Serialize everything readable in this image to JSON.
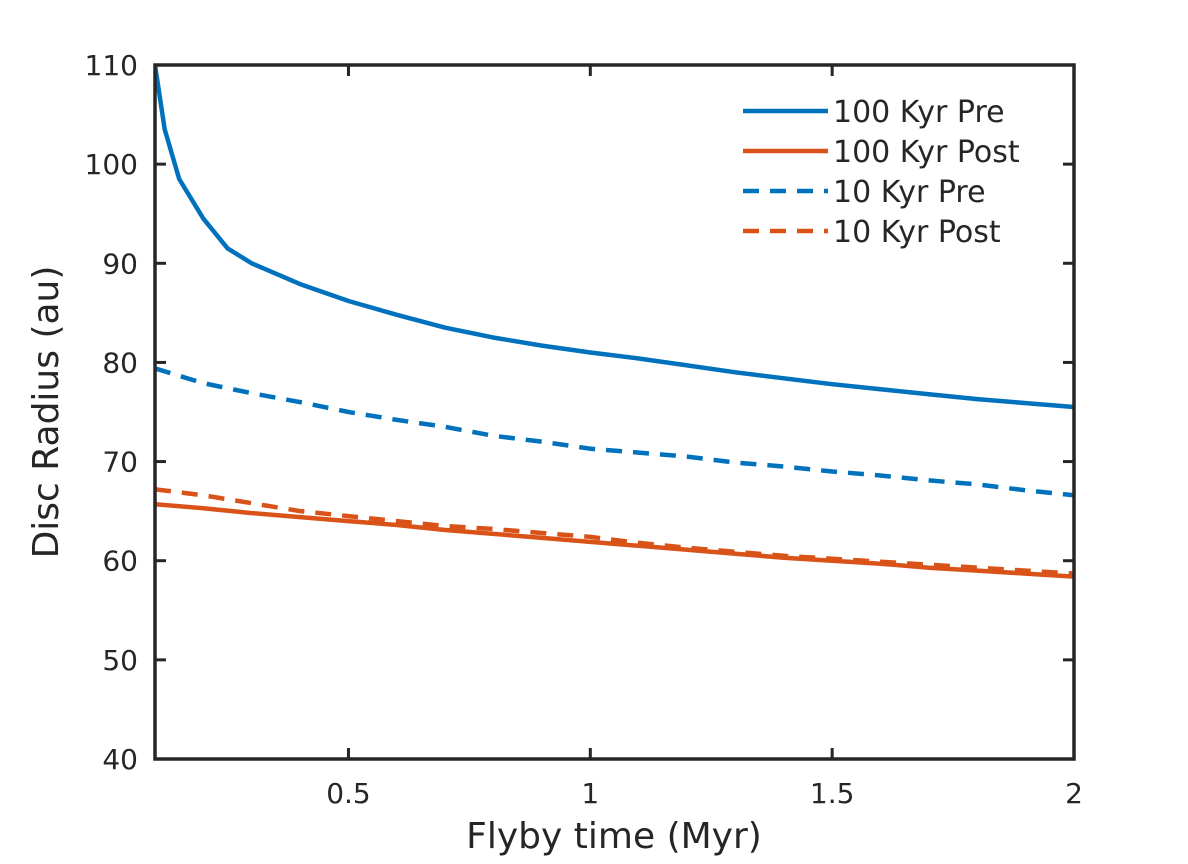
{
  "chart_data": {
    "type": "line",
    "title": "",
    "xlabel": "Flyby time (Myr)",
    "ylabel": "Disc Radius (au)",
    "xlim": [
      0.1,
      2
    ],
    "ylim": [
      40,
      110
    ],
    "xticks": [
      0.5,
      1,
      1.5,
      2
    ],
    "xtick_labels": [
      "0.5",
      "1",
      "1.5",
      "2"
    ],
    "yticks": [
      40,
      50,
      60,
      70,
      80,
      90,
      100,
      110
    ],
    "ytick_labels": [
      "40",
      "50",
      "60",
      "70",
      "80",
      "90",
      "100",
      "110"
    ],
    "grid": false,
    "legend_position": "top-right",
    "series": [
      {
        "name": "100 Kyr Pre",
        "color": "#0072bd",
        "dash": "solid",
        "x": [
          0.1,
          0.12,
          0.15,
          0.2,
          0.25,
          0.3,
          0.4,
          0.5,
          0.6,
          0.7,
          0.8,
          0.9,
          1.0,
          1.1,
          1.2,
          1.3,
          1.4,
          1.5,
          1.6,
          1.7,
          1.8,
          1.9,
          2.0
        ],
        "values": [
          110,
          103.5,
          98.5,
          94.5,
          91.5,
          90.0,
          87.9,
          86.2,
          84.8,
          83.5,
          82.5,
          81.7,
          81.0,
          80.4,
          79.7,
          79.0,
          78.4,
          77.8,
          77.3,
          76.8,
          76.3,
          75.9,
          75.5
        ]
      },
      {
        "name": "100 Kyr Post",
        "color": "#d95319",
        "dash": "solid",
        "x": [
          0.1,
          0.2,
          0.3,
          0.4,
          0.5,
          0.6,
          0.7,
          0.8,
          0.9,
          1.0,
          1.1,
          1.2,
          1.3,
          1.4,
          1.5,
          1.6,
          1.7,
          1.8,
          1.9,
          2.0
        ],
        "values": [
          65.7,
          65.3,
          64.8,
          64.4,
          64.0,
          63.6,
          63.1,
          62.7,
          62.3,
          61.9,
          61.5,
          61.1,
          60.7,
          60.3,
          60.0,
          59.7,
          59.3,
          59.0,
          58.7,
          58.4
        ]
      },
      {
        "name": "10 Kyr Pre",
        "color": "#0072bd",
        "dash": "dashed",
        "x": [
          0.1,
          0.2,
          0.3,
          0.4,
          0.5,
          0.6,
          0.7,
          0.8,
          0.9,
          1.0,
          1.1,
          1.2,
          1.3,
          1.4,
          1.5,
          1.6,
          1.7,
          1.8,
          1.9,
          2.0
        ],
        "values": [
          79.4,
          77.9,
          76.9,
          76.0,
          75.0,
          74.2,
          73.5,
          72.6,
          72.0,
          71.3,
          70.9,
          70.5,
          69.9,
          69.5,
          69.0,
          68.6,
          68.1,
          67.7,
          67.1,
          66.6
        ]
      },
      {
        "name": "10 Kyr Post",
        "color": "#d95319",
        "dash": "dashed",
        "x": [
          0.1,
          0.2,
          0.3,
          0.4,
          0.5,
          0.6,
          0.7,
          0.8,
          0.9,
          1.0,
          1.1,
          1.2,
          1.3,
          1.4,
          1.5,
          1.6,
          1.7,
          1.8,
          1.9,
          2.0
        ],
        "values": [
          67.2,
          66.6,
          65.8,
          65.0,
          64.5,
          64.0,
          63.5,
          63.2,
          62.8,
          62.4,
          61.8,
          61.3,
          60.9,
          60.5,
          60.2,
          59.9,
          59.6,
          59.3,
          59.0,
          58.7
        ]
      }
    ]
  }
}
